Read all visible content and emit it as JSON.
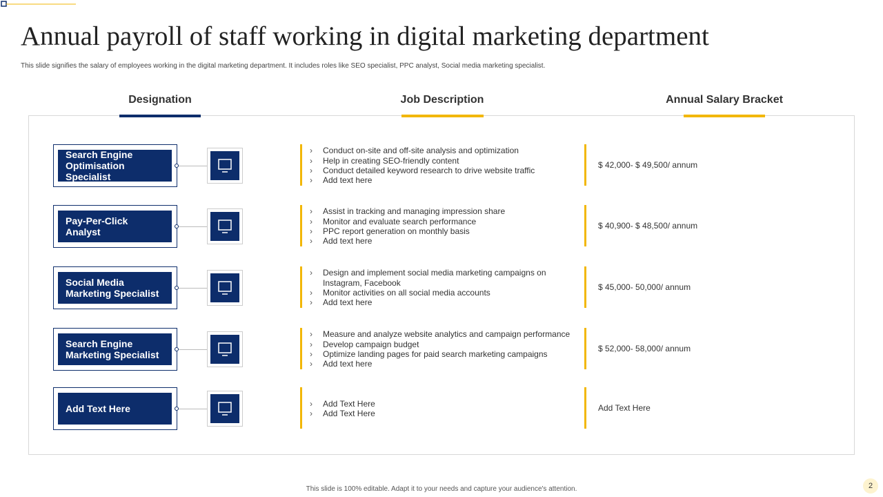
{
  "header": {
    "title": "Annual payroll of staff working in digital marketing department",
    "subtitle": "This slide signifies the salary of employees working in the digital marketing department. It includes roles like SEO specialist, PPC analyst, Social media marketing specialist."
  },
  "table": {
    "columns": [
      "Designation",
      "Job Description",
      "Annual Salary Bracket"
    ],
    "rows": [
      {
        "designation": "Search Engine Optimisation Specialist",
        "description": [
          "Conduct on-site and off-site analysis and optimization",
          "Help in creating SEO-friendly content",
          "Conduct detailed keyword research to drive website traffic",
          "Add text here"
        ],
        "salary": "$ 42,000- $ 49,500/ annum"
      },
      {
        "designation": "Pay-Per-Click Analyst",
        "description": [
          "Assist in tracking and managing impression share",
          "Monitor and evaluate search performance",
          "PPC report generation on monthly basis",
          "Add text here"
        ],
        "salary": "$ 40,900- $ 48,500/ annum"
      },
      {
        "designation": "Social Media Marketing Specialist",
        "description": [
          "Design and implement social media marketing campaigns on Instagram, Facebook",
          "Monitor activities on all social media accounts",
          "Add text here"
        ],
        "salary": "$ 45,000- 50,000/ annum"
      },
      {
        "designation": "Search Engine Marketing Specialist",
        "description": [
          "Measure and analyze website analytics and campaign performance",
          "Develop campaign budget",
          "Optimize landing pages for paid search marketing campaigns",
          "Add text here"
        ],
        "salary": "$ 52,000- 58,000/ annum"
      },
      {
        "designation": "Add Text Here",
        "description": [
          "Add Text Here",
          "Add Text Here"
        ],
        "salary": "Add Text Here"
      }
    ]
  },
  "footer": {
    "note": "This slide is 100% editable. Adapt it to your needs and capture your audience's attention.",
    "page_number": 2
  }
}
